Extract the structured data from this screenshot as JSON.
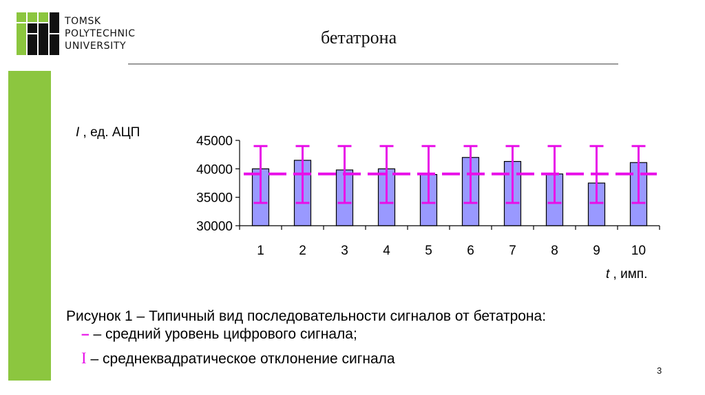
{
  "header": {
    "logo_lines": [
      "TOMSK",
      "POLYTECHNIC",
      "UNIVERSITY"
    ],
    "title": "бетатрона"
  },
  "colors": {
    "accent_green": "#8cc63f",
    "bar_fill": "#9999ff",
    "mean_error_color": "#e80fe8"
  },
  "chart_data": {
    "type": "bar",
    "categories": [
      "1",
      "2",
      "3",
      "4",
      "5",
      "6",
      "7",
      "8",
      "9",
      "10"
    ],
    "values": [
      40000,
      41500,
      39800,
      40000,
      39000,
      42000,
      41300,
      39100,
      37500,
      41100
    ],
    "mean_level": 39100,
    "error_upper": 44000,
    "error_lower": 34000,
    "ylim": [
      30000,
      45000
    ],
    "yticks": [
      "45000",
      "40000",
      "35000",
      "30000"
    ],
    "ylabel_symbol": "I",
    "ylabel_rest": " , ед. АЦП",
    "xlabel_symbol": "t",
    "xlabel_rest": " , имп.",
    "grid": false
  },
  "caption": {
    "text": "Рисунок 1 – Типичный вид последовательности сигналов от бетатрона:",
    "legend_mean_symbol": "–",
    "legend_mean_text": " – средний уровень цифрового сигнала;",
    "legend_sd_symbol": "I",
    "legend_sd_text": " – среднеквадратическое отклонение сигнала"
  },
  "page_number": "3"
}
